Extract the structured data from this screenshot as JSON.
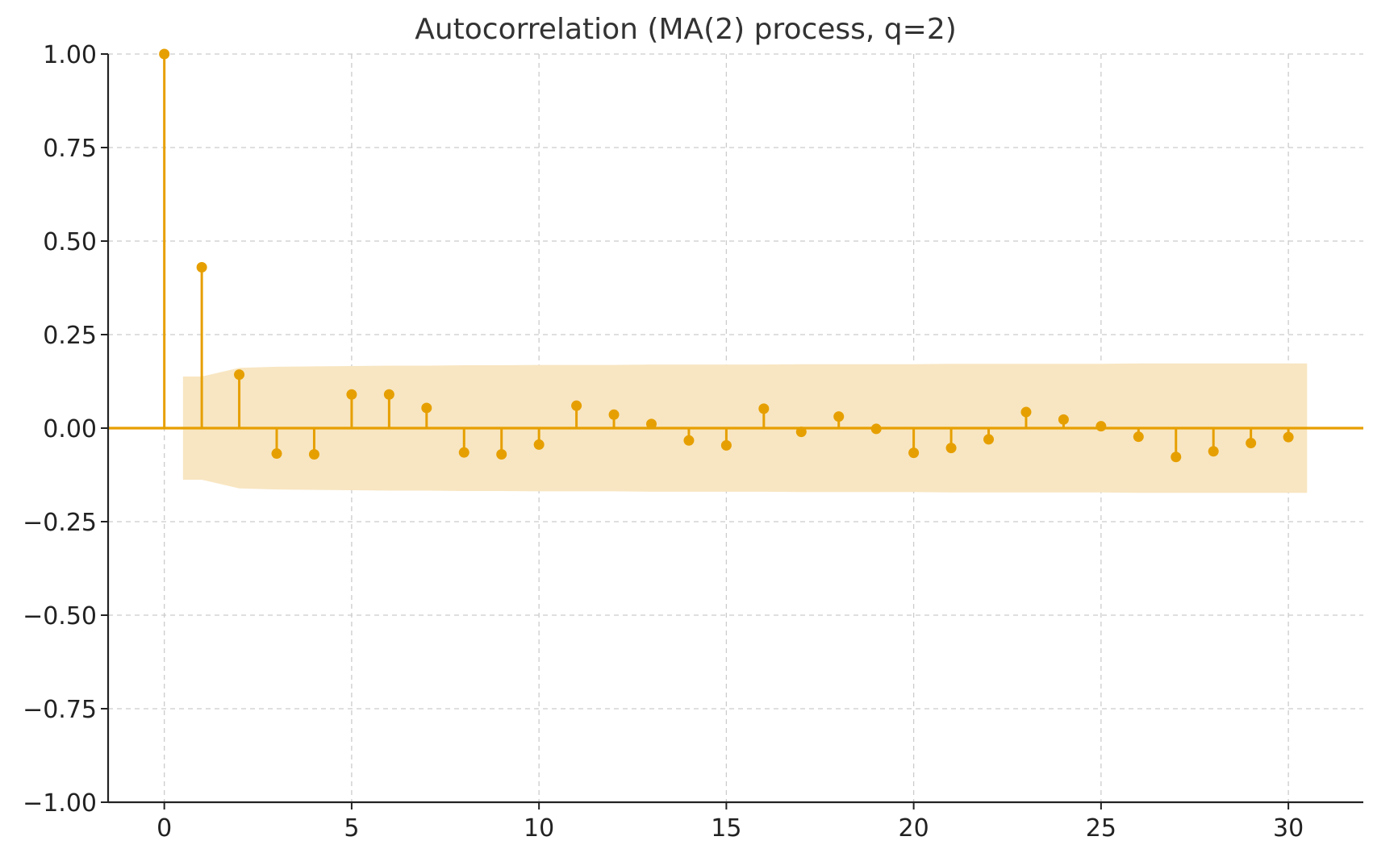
{
  "chart_data": {
    "type": "stem",
    "title": "Autocorrelation (MA(2) process, q=2)",
    "xlabel": "",
    "ylabel": "",
    "xlim": [
      -1.5,
      32
    ],
    "ylim": [
      -1.0,
      1.0
    ],
    "xticks": [
      0,
      5,
      10,
      15,
      20,
      25,
      30
    ],
    "yticks": [
      1.0,
      0.75,
      0.5,
      0.25,
      0.0,
      -0.25,
      -0.5,
      -0.75,
      -1.0
    ],
    "ytick_labels": [
      "1.00",
      "0.75",
      "0.50",
      "0.25",
      "0.00",
      "−0.25",
      "−0.50",
      "−0.75",
      "−1.00"
    ],
    "grid": true,
    "color": "#E69F00",
    "band_color": "#F8E6C2",
    "lags": [
      0,
      1,
      2,
      3,
      4,
      5,
      6,
      7,
      8,
      9,
      10,
      11,
      12,
      13,
      14,
      15,
      16,
      17,
      18,
      19,
      20,
      21,
      22,
      23,
      24,
      25,
      26,
      27,
      28,
      29,
      30
    ],
    "values": [
      1.0,
      0.43,
      0.143,
      -0.068,
      -0.07,
      0.09,
      0.09,
      0.054,
      -0.065,
      -0.07,
      -0.044,
      0.06,
      0.036,
      0.011,
      -0.033,
      -0.046,
      0.052,
      -0.01,
      0.031,
      -0.002,
      -0.066,
      -0.053,
      -0.03,
      0.043,
      0.023,
      0.005,
      -0.023,
      -0.077,
      -0.062,
      -0.04,
      -0.024
    ],
    "confidence_band": {
      "x": [
        0.5,
        1,
        2,
        3,
        4,
        5,
        6,
        7,
        8,
        9,
        10,
        11,
        12,
        13,
        14,
        15,
        16,
        17,
        18,
        19,
        20,
        21,
        22,
        23,
        24,
        25,
        26,
        27,
        28,
        29,
        30,
        30.5
      ],
      "upper": [
        0.138,
        0.138,
        0.161,
        0.164,
        0.165,
        0.166,
        0.167,
        0.167,
        0.168,
        0.168,
        0.169,
        0.169,
        0.169,
        0.17,
        0.17,
        0.17,
        0.17,
        0.171,
        0.171,
        0.171,
        0.171,
        0.172,
        0.172,
        0.172,
        0.172,
        0.172,
        0.173,
        0.173,
        0.173,
        0.173,
        0.173,
        0.173
      ]
    }
  }
}
